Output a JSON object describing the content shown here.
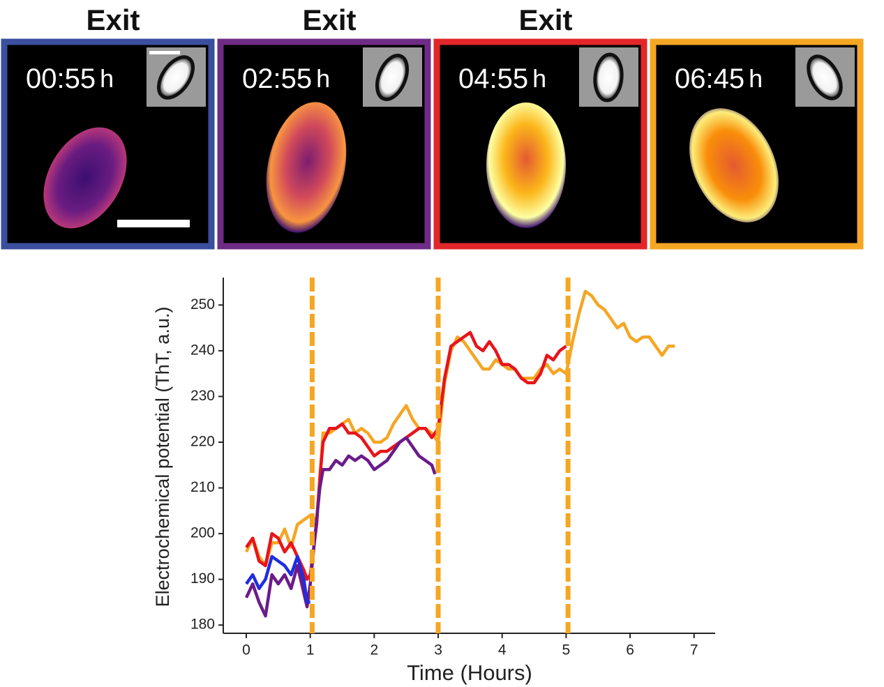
{
  "panels": [
    {
      "label": "Exit",
      "time": "00:55",
      "unit": "h",
      "color": "#3a4f9e"
    },
    {
      "label": "Exit",
      "time": "02:55",
      "unit": "h",
      "color": "#6f2c86"
    },
    {
      "label": "Exit",
      "time": "04:55",
      "unit": "h",
      "color": "#e3262a"
    },
    {
      "time": "06:45",
      "unit": "h",
      "color": "#f5a623"
    }
  ],
  "chart_data": {
    "type": "line",
    "x_label": "Time (Hours)",
    "y_label": "Electrochemical potential (ThT, a.u.)",
    "xlim": [
      -0.36,
      7.33
    ],
    "xticks": [
      0,
      1,
      2,
      3,
      4,
      5,
      6,
      7
    ],
    "ylim": [
      178.2,
      256
    ],
    "yticks": [
      180,
      190,
      200,
      210,
      220,
      230,
      240,
      250
    ],
    "vlines": [
      1.03,
      3.0,
      5.03
    ],
    "vline_color": "#f5a623",
    "series": [
      {
        "color": "#f5a623",
        "x": [
          0,
          0.1,
          0.2,
          0.3,
          0.4,
          0.5,
          0.6,
          0.7,
          0.8,
          0.9,
          1.0,
          1.1,
          1.15,
          1.2,
          1.3,
          1.4,
          1.5,
          1.6,
          1.7,
          1.8,
          1.9,
          2.0,
          2.1,
          2.2,
          2.3,
          2.4,
          2.5,
          2.6,
          2.7,
          2.8,
          2.9,
          3.0,
          3.1,
          3.2,
          3.3,
          3.4,
          3.5,
          3.6,
          3.7,
          3.8,
          3.9,
          4.0,
          4.1,
          4.2,
          4.3,
          4.4,
          4.5,
          4.6,
          4.7,
          4.8,
          4.9,
          5.0,
          5.1,
          5.2,
          5.3,
          5.4,
          5.5,
          5.6,
          5.7,
          5.8,
          5.9,
          6.0,
          6.1,
          6.2,
          6.3,
          6.4,
          6.5,
          6.6,
          6.7
        ],
        "values": [
          196,
          199,
          195,
          193,
          198,
          198,
          201,
          197,
          202,
          203,
          204,
          203,
          212,
          222,
          222,
          223,
          224,
          225,
          222,
          223,
          222,
          220,
          220,
          221,
          224,
          226,
          228,
          225,
          223,
          223,
          222,
          220,
          233,
          240,
          243,
          242,
          240,
          238,
          236,
          236,
          238,
          237,
          236,
          236,
          234,
          234,
          234,
          236,
          237,
          235,
          236,
          235,
          242,
          248,
          253,
          252,
          250,
          249,
          247,
          245,
          246,
          243,
          242,
          243,
          243,
          241,
          239,
          241,
          241
        ]
      },
      {
        "color": "#e8141b",
        "x": [
          0,
          0.1,
          0.2,
          0.3,
          0.4,
          0.5,
          0.6,
          0.7,
          0.8,
          0.9,
          0.95,
          1.0,
          1.1,
          1.15,
          1.2,
          1.3,
          1.4,
          1.5,
          1.6,
          1.7,
          1.8,
          1.9,
          2.0,
          2.1,
          2.2,
          2.3,
          2.4,
          2.5,
          2.6,
          2.7,
          2.8,
          2.9,
          3.0,
          3.1,
          3.2,
          3.3,
          3.4,
          3.5,
          3.6,
          3.7,
          3.8,
          3.9,
          4.0,
          4.1,
          4.2,
          4.3,
          4.4,
          4.5,
          4.6,
          4.7,
          4.8,
          4.9,
          5.0
        ],
        "values": [
          197,
          199,
          194,
          193,
          200,
          199,
          196,
          198,
          195,
          192,
          190,
          191,
          202,
          212,
          220,
          223,
          223,
          224,
          222,
          222,
          221,
          219,
          217,
          218,
          218,
          219,
          220,
          221,
          222,
          223,
          223,
          221,
          223,
          234,
          241,
          242,
          243,
          244,
          241,
          240,
          242,
          240,
          237,
          237,
          236,
          234,
          233,
          233,
          235,
          239,
          238,
          240,
          241
        ]
      },
      {
        "color": "#6a1b8a",
        "x": [
          0,
          0.1,
          0.2,
          0.3,
          0.4,
          0.5,
          0.6,
          0.7,
          0.8,
          0.9,
          0.95,
          1.0,
          1.1,
          1.15,
          1.2,
          1.3,
          1.4,
          1.5,
          1.6,
          1.7,
          1.8,
          1.9,
          2.0,
          2.1,
          2.2,
          2.3,
          2.4,
          2.5,
          2.6,
          2.7,
          2.8,
          2.9,
          2.95
        ],
        "values": [
          186,
          189,
          185,
          182,
          191,
          189,
          191,
          188,
          193,
          187,
          184,
          189,
          203,
          210,
          214,
          214,
          216,
          215,
          217,
          216,
          217,
          216,
          214,
          215,
          216,
          218,
          220,
          221,
          219,
          217,
          216,
          215,
          213
        ]
      },
      {
        "color": "#1f2de0",
        "x": [
          0,
          0.1,
          0.2,
          0.3,
          0.4,
          0.5,
          0.6,
          0.7,
          0.8,
          0.9,
          0.95,
          1.0
        ],
        "values": [
          189,
          191,
          188,
          190,
          195,
          194,
          193,
          191,
          195,
          190,
          185,
          185
        ]
      }
    ]
  }
}
